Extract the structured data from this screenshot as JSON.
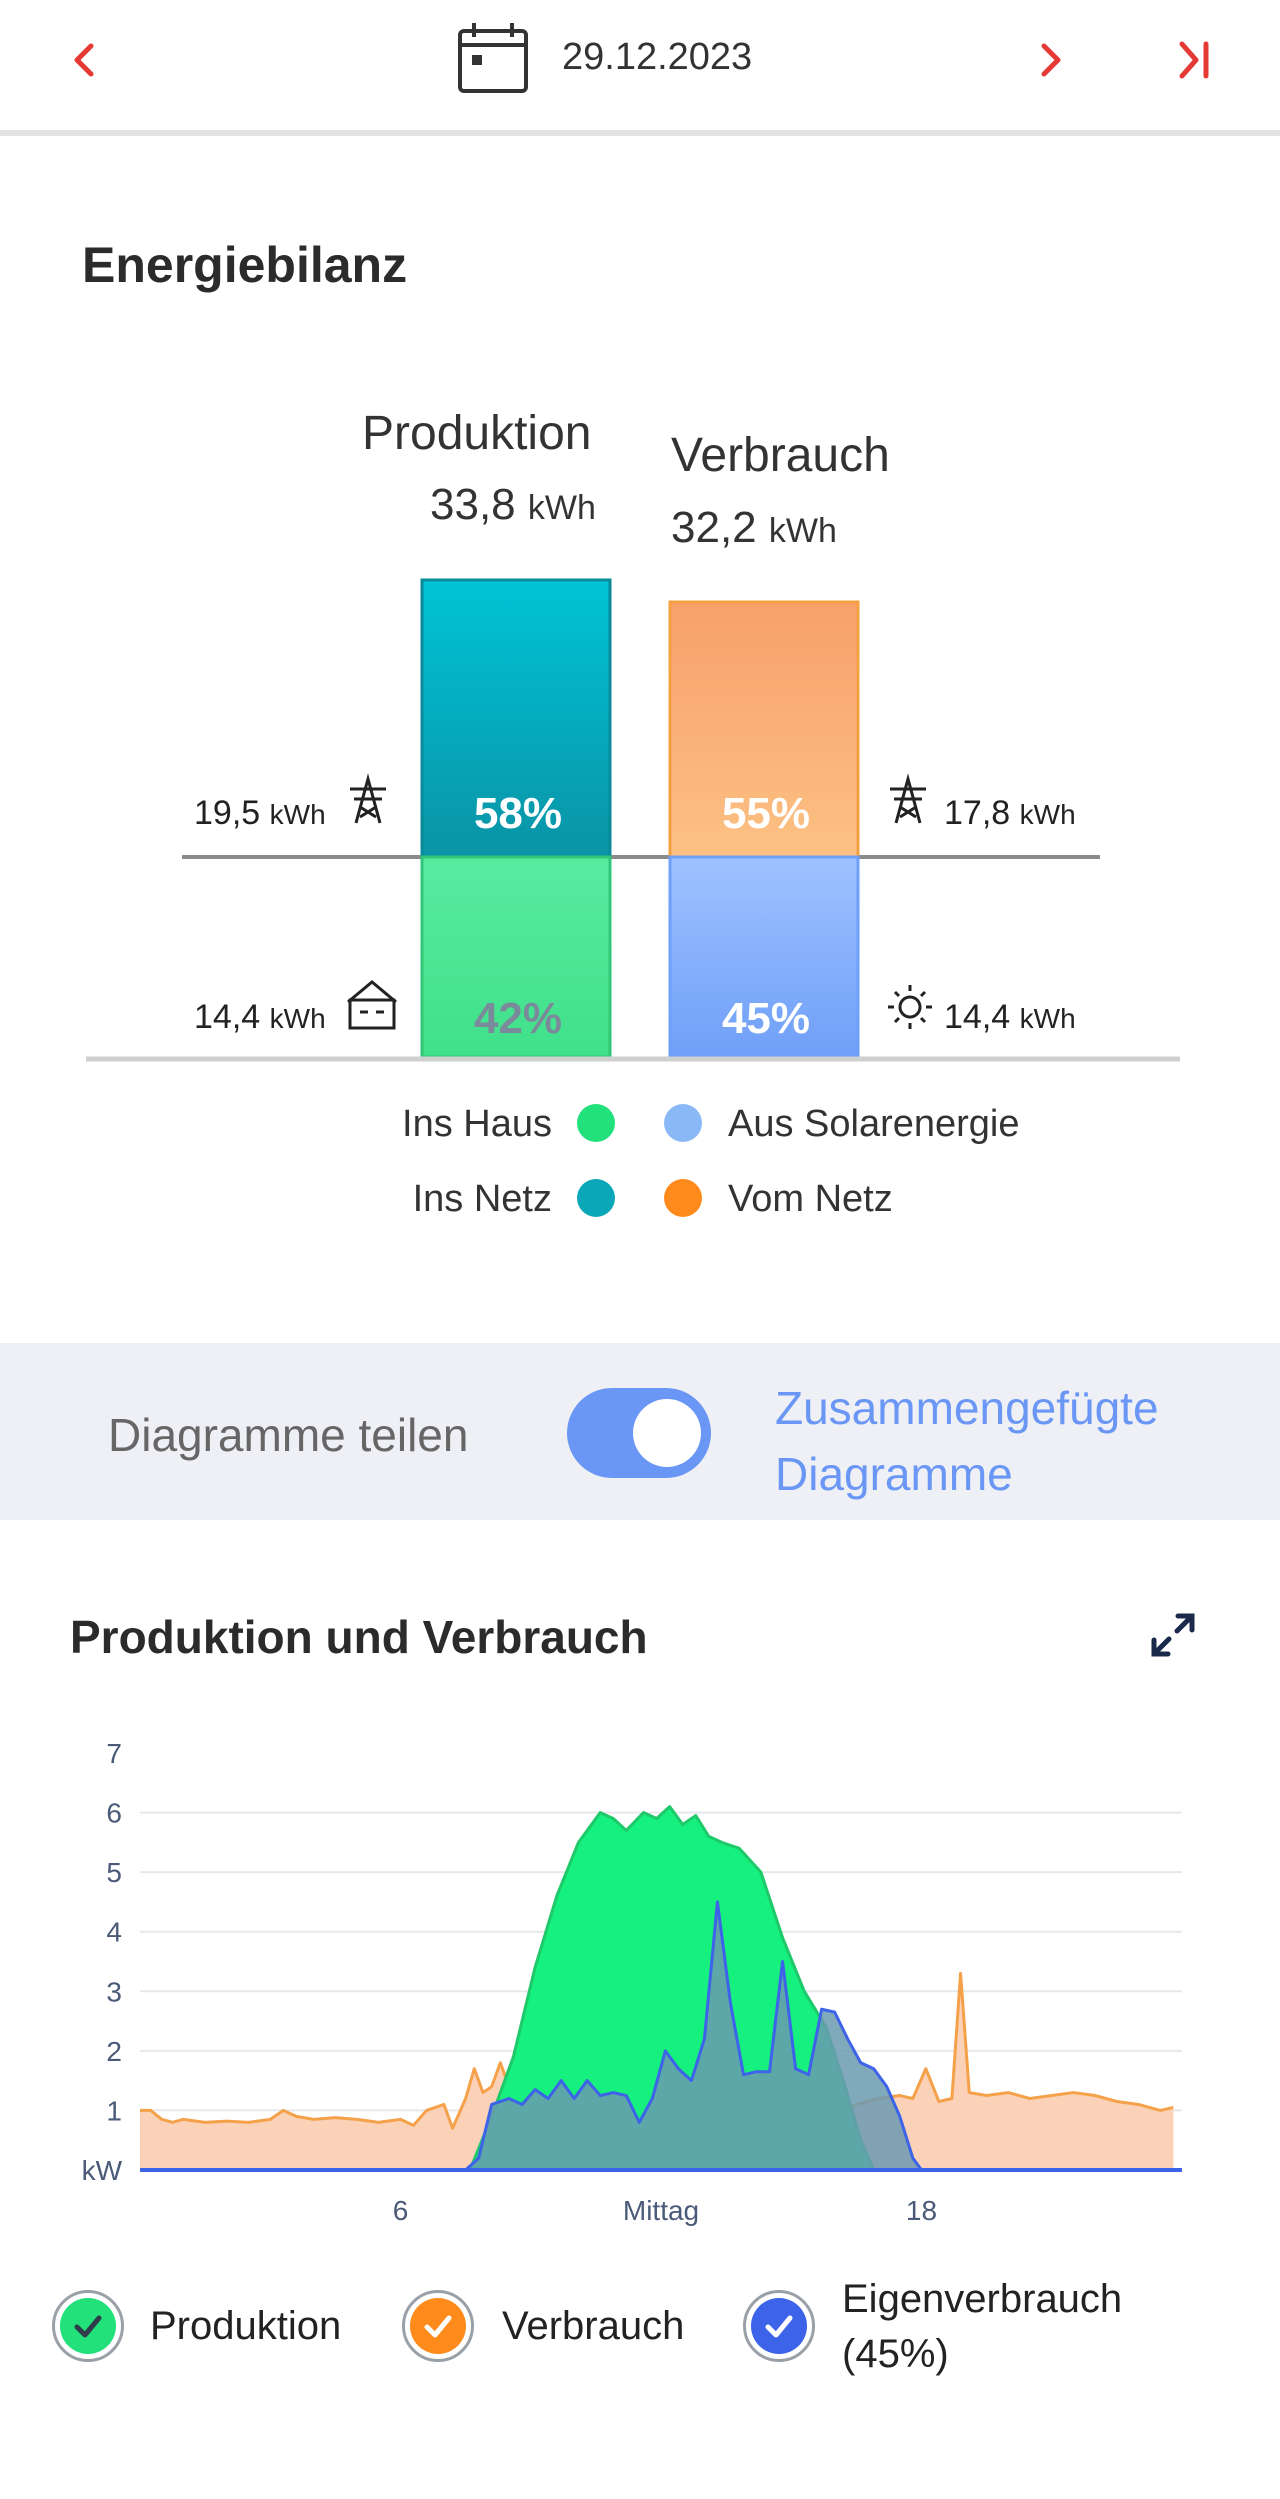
{
  "header": {
    "date": "29.12.2023",
    "prev_icon": "chevron-left-icon",
    "calendar_icon": "calendar-icon",
    "next_icon": "chevron-right-icon",
    "last_icon": "skip-to-end-icon",
    "accent": "#e53935"
  },
  "balance": {
    "title": "Energiebilanz",
    "production": {
      "label": "Produktion",
      "value": "33,8",
      "unit": "kWh",
      "grid_pct": "58%",
      "house_pct": "42%",
      "grid_kwh": "19,5",
      "house_kwh": "14,4",
      "grid_fraction": 0.58,
      "house_fraction": 0.42
    },
    "consumption": {
      "label": "Verbrauch",
      "value": "32,2",
      "unit": "kWh",
      "grid_pct": "55%",
      "solar_pct": "45%",
      "grid_kwh": "17,8",
      "solar_kwh": "14,4",
      "grid_fraction": 0.55,
      "solar_fraction": 0.45
    },
    "kwh_unit": "kWh",
    "legend": [
      {
        "label": "Ins Haus",
        "color": "#22e07a"
      },
      {
        "label": "Aus Solarenergie",
        "color": "#8ab8f7"
      },
      {
        "label": "Ins Netz",
        "color": "#0aa7b8"
      },
      {
        "label": "Vom Netz",
        "color": "#ff8a1c"
      }
    ]
  },
  "toggle": {
    "left_label": "Diagramme teilen",
    "right_label_line1": "Zusammengefügte",
    "right_label_line2": "Diagramme",
    "state": "on",
    "color": "#6a96f5"
  },
  "chart_section": {
    "title": "Produktion und Verbrauch",
    "expand_icon": "expand-icon"
  },
  "chart_data": {
    "type": "area",
    "ylabel": "kW",
    "y_ticks": [
      "7",
      "6",
      "5",
      "4",
      "3",
      "2",
      "1"
    ],
    "ylim": [
      0,
      7
    ],
    "x_tick_labels": [
      {
        "hour": 6,
        "label": "6"
      },
      {
        "hour": 12,
        "label": "Mittag"
      },
      {
        "hour": 18,
        "label": "18"
      }
    ],
    "xlim": [
      0,
      24
    ],
    "grid": true,
    "series": [
      {
        "name": "Verbrauch",
        "color": "#f5a14a",
        "fill": "#fbd2b8",
        "points": [
          [
            0,
            1.0
          ],
          [
            0.25,
            1.0
          ],
          [
            0.5,
            0.85
          ],
          [
            0.75,
            0.8
          ],
          [
            1,
            0.85
          ],
          [
            1.5,
            0.8
          ],
          [
            2,
            0.82
          ],
          [
            2.5,
            0.8
          ],
          [
            3,
            0.85
          ],
          [
            3.3,
            1.0
          ],
          [
            3.6,
            0.9
          ],
          [
            4,
            0.85
          ],
          [
            4.5,
            0.88
          ],
          [
            5,
            0.85
          ],
          [
            5.5,
            0.8
          ],
          [
            6,
            0.85
          ],
          [
            6.3,
            0.75
          ],
          [
            6.6,
            1.0
          ],
          [
            7,
            1.1
          ],
          [
            7.2,
            0.7
          ],
          [
            7.5,
            1.2
          ],
          [
            7.7,
            1.7
          ],
          [
            7.9,
            1.3
          ],
          [
            8.1,
            1.4
          ],
          [
            8.3,
            1.8
          ],
          [
            8.5,
            1.4
          ],
          [
            8.8,
            1.1
          ],
          [
            9.2,
            1.15
          ],
          [
            9.6,
            1.1
          ],
          [
            10,
            1.25
          ],
          [
            10.5,
            1.2
          ],
          [
            11,
            1.2
          ],
          [
            11.5,
            1.3
          ],
          [
            12,
            1.25
          ],
          [
            12.5,
            1.3
          ],
          [
            13,
            1.4
          ],
          [
            13.5,
            2.2
          ],
          [
            14,
            2.0
          ],
          [
            14.5,
            1.7
          ],
          [
            15,
            1.6
          ],
          [
            15.4,
            1.1
          ],
          [
            15.7,
            0.9
          ],
          [
            16,
            0.95
          ],
          [
            16.5,
            1.1
          ],
          [
            17,
            1.2
          ],
          [
            17.5,
            1.25
          ],
          [
            17.8,
            1.2
          ],
          [
            18.1,
            1.7
          ],
          [
            18.4,
            1.15
          ],
          [
            18.7,
            1.2
          ],
          [
            18.9,
            3.3
          ],
          [
            19.1,
            1.3
          ],
          [
            19.5,
            1.25
          ],
          [
            20,
            1.3
          ],
          [
            20.5,
            1.2
          ],
          [
            21,
            1.25
          ],
          [
            21.5,
            1.3
          ],
          [
            22,
            1.25
          ],
          [
            22.5,
            1.15
          ],
          [
            23,
            1.1
          ],
          [
            23.5,
            1.0
          ],
          [
            23.8,
            1.05
          ]
        ]
      },
      {
        "name": "Produktion",
        "color": "#1ec96a",
        "fill": "#16f07e",
        "points": [
          [
            7.6,
            0
          ],
          [
            8.1,
            0.9
          ],
          [
            8.6,
            1.9
          ],
          [
            9.1,
            3.4
          ],
          [
            9.6,
            4.6
          ],
          [
            10.1,
            5.5
          ],
          [
            10.6,
            6.0
          ],
          [
            10.9,
            5.9
          ],
          [
            11.2,
            5.7
          ],
          [
            11.6,
            6.0
          ],
          [
            11.9,
            5.9
          ],
          [
            12.2,
            6.1
          ],
          [
            12.5,
            5.8
          ],
          [
            12.8,
            5.95
          ],
          [
            13.1,
            5.6
          ],
          [
            13.4,
            5.5
          ],
          [
            13.8,
            5.4
          ],
          [
            14.3,
            5.0
          ],
          [
            14.8,
            3.9
          ],
          [
            15.3,
            3.0
          ],
          [
            15.8,
            2.4
          ],
          [
            16.2,
            1.5
          ],
          [
            16.6,
            0.5
          ],
          [
            16.9,
            0
          ]
        ]
      },
      {
        "name": "Eigenverbrauch",
        "color": "#3d63e8",
        "fill": "#6b9ab0",
        "points": [
          [
            7.5,
            0
          ],
          [
            7.8,
            0.2
          ],
          [
            8.1,
            1.1
          ],
          [
            8.5,
            1.2
          ],
          [
            8.8,
            1.1
          ],
          [
            9.1,
            1.35
          ],
          [
            9.4,
            1.2
          ],
          [
            9.7,
            1.5
          ],
          [
            10,
            1.2
          ],
          [
            10.3,
            1.5
          ],
          [
            10.6,
            1.25
          ],
          [
            10.9,
            1.3
          ],
          [
            11.2,
            1.25
          ],
          [
            11.5,
            0.8
          ],
          [
            11.8,
            1.2
          ],
          [
            12.1,
            2.0
          ],
          [
            12.4,
            1.7
          ],
          [
            12.7,
            1.5
          ],
          [
            13.0,
            2.2
          ],
          [
            13.3,
            4.5
          ],
          [
            13.6,
            2.8
          ],
          [
            13.9,
            1.6
          ],
          [
            14.2,
            1.65
          ],
          [
            14.5,
            1.65
          ],
          [
            14.8,
            3.5
          ],
          [
            15.1,
            1.7
          ],
          [
            15.4,
            1.6
          ],
          [
            15.7,
            2.7
          ],
          [
            16.0,
            2.65
          ],
          [
            16.3,
            2.2
          ],
          [
            16.6,
            1.8
          ],
          [
            16.9,
            1.7
          ],
          [
            17.2,
            1.4
          ],
          [
            17.5,
            0.9
          ],
          [
            17.8,
            0.2
          ],
          [
            18.0,
            0
          ]
        ]
      }
    ]
  },
  "chart_legend": [
    {
      "label": "Produktion",
      "color": "#22e07a",
      "checked": true
    },
    {
      "label": "Verbrauch",
      "color": "#ff8a1c",
      "checked": true
    },
    {
      "label": "Eigenverbrauch",
      "label2": "(45%)",
      "color": "#3d63e8",
      "checked": true
    }
  ]
}
